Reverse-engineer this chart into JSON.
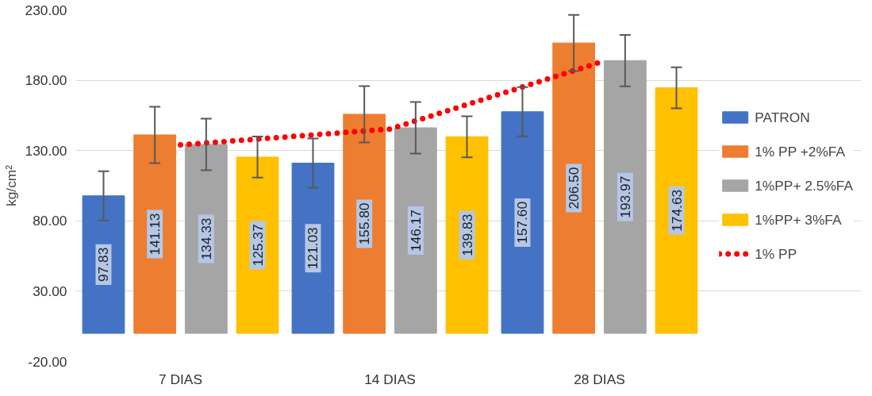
{
  "chart_data": {
    "type": "bar",
    "ylabel": "kg/cm²",
    "categories": [
      "7 DIAS",
      "14 DIAS",
      "28 DIAS"
    ],
    "series": [
      {
        "name": "PATRON",
        "color": "#4472c4",
        "values": [
          97.83,
          121.03,
          157.6
        ],
        "errors": [
          17.5,
          17.5,
          17.5
        ],
        "value_labels": [
          "97.83",
          "121.03",
          "157.60"
        ]
      },
      {
        "name": "1% PP +2%FA",
        "color": "#ed7d31",
        "values": [
          141.13,
          155.8,
          206.5
        ],
        "errors": [
          20,
          20,
          20
        ],
        "value_labels": [
          "141.13",
          "155.80",
          "206.50"
        ]
      },
      {
        "name": "1%PP+ 2.5%FA",
        "color": "#a5a5a5",
        "values": [
          134.33,
          146.17,
          193.97
        ],
        "errors": [
          18.3,
          18.3,
          18.3
        ],
        "value_labels": [
          "134.33",
          "146.17",
          "193.97"
        ]
      },
      {
        "name": "1%PP+ 3%FA",
        "color": "#ffc000",
        "values": [
          125.37,
          139.83,
          174.63
        ],
        "errors": [
          14.6,
          14.6,
          14.6
        ],
        "value_labels": [
          "125.37",
          "139.83",
          "174.63"
        ]
      },
      {
        "name": "1% PP",
        "type": "line",
        "color": "#ff0000",
        "line_style": "dotted",
        "values": [
          134,
          145.3,
          192.6
        ]
      }
    ],
    "ylim": [
      -20,
      230
    ],
    "yticks": [
      {
        "value": -20,
        "label": "-20.00"
      },
      {
        "value": 30,
        "label": "30.00"
      },
      {
        "value": 80,
        "label": "80.00"
      },
      {
        "value": 130,
        "label": "130.00"
      },
      {
        "value": 180,
        "label": "180.00"
      },
      {
        "value": 230,
        "label": "230.00"
      }
    ],
    "grid": "y",
    "legend": "right"
  }
}
